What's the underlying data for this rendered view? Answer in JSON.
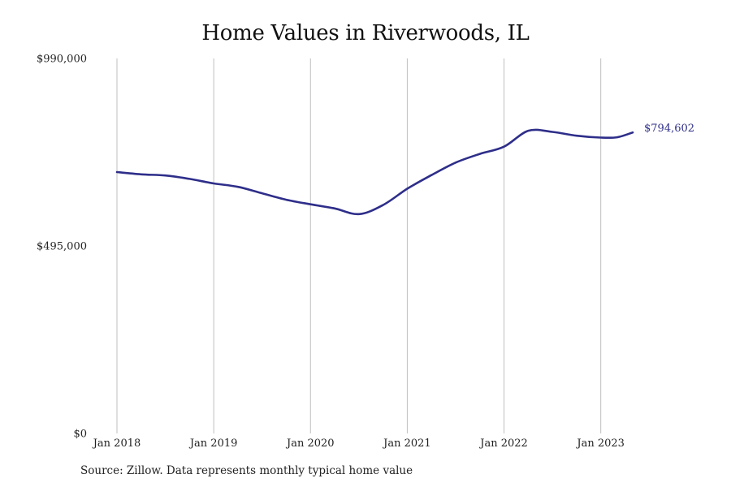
{
  "chart_data": {
    "type": "line",
    "title": "Home Values in Riverwoods, IL",
    "xlabel": "",
    "ylabel": "",
    "ylim": [
      0,
      990000
    ],
    "y_ticks": [
      {
        "value": 0,
        "label": "$0"
      },
      {
        "value": 495000,
        "label": "$495,000"
      },
      {
        "value": 990000,
        "label": "$990,000"
      }
    ],
    "x_ticks": [
      {
        "value": 2018.0,
        "label": "Jan 2018"
      },
      {
        "value": 2019.0,
        "label": "Jan 2019"
      },
      {
        "value": 2020.0,
        "label": "Jan 2020"
      },
      {
        "value": 2021.0,
        "label": "Jan 2021"
      },
      {
        "value": 2022.0,
        "label": "Jan 2022"
      },
      {
        "value": 2023.0,
        "label": "Jan 2023"
      }
    ],
    "xlim": [
      2018.0,
      2023.33
    ],
    "grid": {
      "vertical": true,
      "horizontal": false
    },
    "line_color": "#2e2e8a",
    "grid_color": "#bfbfbf",
    "series": [
      {
        "x": [
          2018.0,
          2018.25,
          2018.5,
          2018.75,
          2019.0,
          2019.25,
          2019.5,
          2019.75,
          2020.0,
          2020.25,
          2020.5,
          2020.75,
          2021.0,
          2021.25,
          2021.5,
          2021.75,
          2022.0,
          2022.25,
          2022.5,
          2022.75,
          2023.0,
          2023.17,
          2023.33
        ],
        "values": [
          690000,
          684000,
          681000,
          672000,
          660000,
          651000,
          634000,
          617000,
          605000,
          594000,
          579000,
          603000,
          646000,
          682000,
          715000,
          738000,
          757000,
          799000,
          796000,
          786000,
          781000,
          782000,
          794602
        ]
      }
    ],
    "end_label": "$794,602"
  },
  "source": "Source: Zillow. Data represents monthly typical home value"
}
